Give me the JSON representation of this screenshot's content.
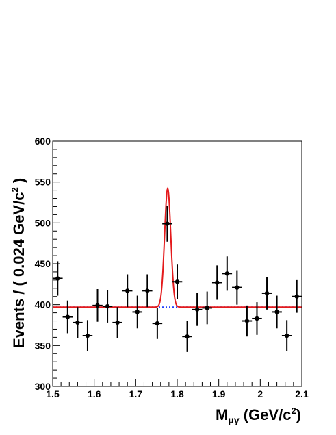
{
  "chart_data": {
    "type": "scatter",
    "xlabel_main": "M",
    "xlabel_sub": "μγ",
    "xlabel_rest": " (GeV/c",
    "xlabel_sup": "2",
    "xlabel_end": ")",
    "ylabel_main": "Events / ( 0.024 GeV/c",
    "ylabel_sup": "2",
    "ylabel_end": " )",
    "xlim": [
      1.5,
      2.1
    ],
    "ylim": [
      300,
      600
    ],
    "x_ticks": [
      "1.5",
      "1.6",
      "1.7",
      "1.8",
      "1.9",
      "2",
      "2.1"
    ],
    "y_ticks": [
      "300",
      "350",
      "400",
      "450",
      "500",
      "550",
      "600"
    ],
    "grid": false,
    "series": [
      {
        "kind": "points-with-errors",
        "x": [
          1.512,
          1.536,
          1.56,
          1.584,
          1.608,
          1.632,
          1.656,
          1.68,
          1.704,
          1.728,
          1.752,
          1.776,
          1.8,
          1.824,
          1.848,
          1.872,
          1.896,
          1.92,
          1.944,
          1.968,
          1.992,
          2.016,
          2.04,
          2.064,
          2.088
        ],
        "y": [
          432,
          385,
          378,
          362,
          399,
          398,
          378,
          417,
          391,
          417,
          377,
          499,
          428,
          361,
          394,
          396,
          427,
          438,
          421,
          380,
          383,
          414,
          391,
          362,
          410
        ],
        "yerr": [
          21,
          20,
          19,
          19,
          20,
          20,
          19,
          20,
          20,
          20,
          19,
          22,
          21,
          19,
          20,
          20,
          21,
          21,
          21,
          19,
          20,
          20,
          20,
          19,
          20
        ]
      },
      {
        "kind": "fit-total",
        "color": "#e41a1c",
        "background": 397,
        "peak_mean": 1.777,
        "peak_height": 145,
        "peak_sigma": 0.0075
      },
      {
        "kind": "background-fit",
        "color": "#1f3fff",
        "style": "dotted",
        "value": 397
      }
    ]
  }
}
